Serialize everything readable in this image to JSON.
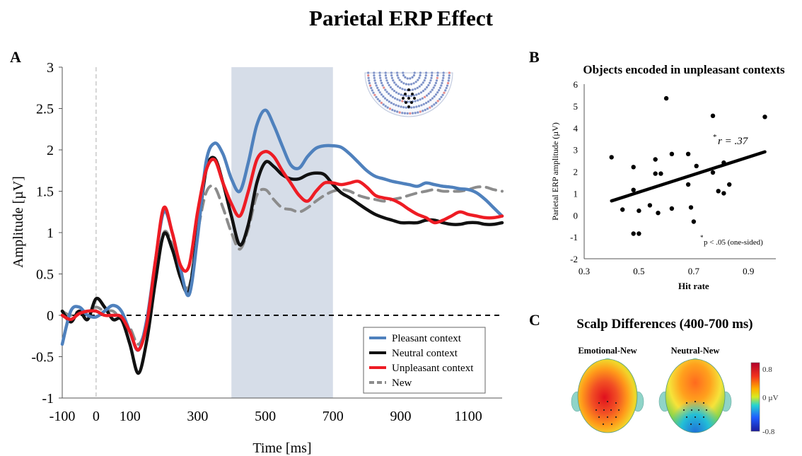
{
  "title": "Parietal ERP Effect",
  "colors": {
    "pleasant": "#4f81bd",
    "neutral": "#111111",
    "unpleasant": "#ee1c24",
    "new": "#8c8c8c",
    "window": "#d6dde8"
  },
  "panel_a": {
    "letter": "A",
    "xlabel": "Time [ms]",
    "ylabel": "Amplitude [µV]",
    "sensor_map_icon": "sensor-layout-icon"
  },
  "panel_b": {
    "letter": "B",
    "title": "Objects encoded in unpleasant contexts",
    "xlabel": "Hit rate",
    "ylabel": "Parietal ERP amplitude (µV)",
    "r_star": "*",
    "r_label": "r = .37",
    "p_star": "*",
    "p_label": "p < .05 (one-sided)"
  },
  "panel_c": {
    "letter": "C",
    "title": "Scalp Differences (400-700 ms)",
    "maps": [
      {
        "label": "Emotional-New"
      },
      {
        "label": "Neutral-New"
      }
    ],
    "colorbar": {
      "max": "0.8",
      "mid": "0 µV",
      "min": "-0.8"
    }
  },
  "chart_data": [
    {
      "type": "line",
      "panel": "A",
      "xlabel": "Time [ms]",
      "ylabel": "Amplitude [µV]",
      "xlim": [
        -100,
        1200
      ],
      "ylim": [
        -1,
        3
      ],
      "xticks": [
        -100,
        0,
        100,
        300,
        500,
        700,
        900,
        1100
      ],
      "yticks": [
        3,
        2.5,
        2,
        1.5,
        1,
        0.5,
        0,
        -0.5,
        -1
      ],
      "shaded_window": [
        400,
        700
      ],
      "zero_marker_x": 0,
      "legend": "bottom-right",
      "series": [
        {
          "name": "Pleasant context",
          "key": "pleasant",
          "dash": false,
          "x": [
            -100,
            -75,
            -50,
            -25,
            0,
            25,
            50,
            75,
            100,
            125,
            150,
            175,
            200,
            225,
            250,
            275,
            300,
            325,
            350,
            375,
            400,
            425,
            450,
            475,
            500,
            525,
            550,
            575,
            600,
            625,
            650,
            675,
            700,
            725,
            750,
            775,
            800,
            825,
            850,
            875,
            900,
            925,
            950,
            975,
            1000,
            1025,
            1050,
            1075,
            1100,
            1125,
            1150,
            1175,
            1200
          ],
          "y": [
            -0.35,
            0.05,
            0.1,
            0.0,
            -0.02,
            0.05,
            0.12,
            0.05,
            -0.2,
            -0.42,
            -0.05,
            0.65,
            1.25,
            1.0,
            0.55,
            0.25,
            0.95,
            1.85,
            2.08,
            1.95,
            1.65,
            1.5,
            1.85,
            2.3,
            2.48,
            2.3,
            2.05,
            1.82,
            1.78,
            1.92,
            2.02,
            2.05,
            2.05,
            2.03,
            1.95,
            1.85,
            1.75,
            1.68,
            1.65,
            1.62,
            1.6,
            1.58,
            1.56,
            1.6,
            1.58,
            1.56,
            1.55,
            1.53,
            1.52,
            1.48,
            1.4,
            1.3,
            1.2
          ]
        },
        {
          "name": "Neutral context",
          "key": "neutral",
          "dash": false,
          "x": [
            -100,
            -75,
            -50,
            -25,
            0,
            25,
            50,
            75,
            100,
            125,
            150,
            175,
            200,
            225,
            250,
            275,
            300,
            325,
            350,
            375,
            400,
            425,
            450,
            475,
            500,
            525,
            550,
            575,
            600,
            625,
            650,
            675,
            700,
            725,
            750,
            775,
            800,
            825,
            850,
            875,
            900,
            925,
            950,
            975,
            1000,
            1025,
            1050,
            1075,
            1100,
            1125,
            1150,
            1175,
            1200
          ],
          "y": [
            0.05,
            -0.08,
            0.05,
            -0.05,
            0.2,
            0.1,
            -0.05,
            -0.05,
            -0.35,
            -0.7,
            -0.3,
            0.4,
            0.98,
            0.8,
            0.45,
            0.3,
            1.0,
            1.75,
            1.9,
            1.6,
            1.2,
            0.85,
            1.1,
            1.6,
            1.85,
            1.8,
            1.7,
            1.65,
            1.65,
            1.7,
            1.72,
            1.7,
            1.58,
            1.48,
            1.42,
            1.35,
            1.28,
            1.22,
            1.18,
            1.15,
            1.12,
            1.12,
            1.12,
            1.15,
            1.15,
            1.12,
            1.1,
            1.1,
            1.12,
            1.12,
            1.1,
            1.1,
            1.12
          ]
        },
        {
          "name": "Unpleasant context",
          "key": "unpleasant",
          "dash": false,
          "x": [
            -100,
            -75,
            -50,
            -25,
            0,
            25,
            50,
            75,
            100,
            125,
            150,
            175,
            200,
            225,
            250,
            275,
            300,
            325,
            350,
            375,
            400,
            425,
            450,
            475,
            500,
            525,
            550,
            575,
            600,
            625,
            650,
            675,
            700,
            725,
            750,
            775,
            800,
            825,
            850,
            875,
            900,
            925,
            950,
            975,
            1000,
            1025,
            1050,
            1075,
            1100,
            1125,
            1150,
            1175,
            1200
          ],
          "y": [
            0.0,
            -0.05,
            0.02,
            0.05,
            0.05,
            0.0,
            0.0,
            -0.02,
            -0.2,
            -0.42,
            -0.1,
            0.65,
            1.3,
            1.0,
            0.6,
            0.6,
            1.25,
            1.75,
            1.88,
            1.6,
            1.35,
            1.2,
            1.5,
            1.88,
            1.98,
            1.92,
            1.75,
            1.6,
            1.45,
            1.38,
            1.5,
            1.6,
            1.6,
            1.58,
            1.6,
            1.62,
            1.55,
            1.45,
            1.42,
            1.4,
            1.35,
            1.28,
            1.22,
            1.18,
            1.12,
            1.15,
            1.2,
            1.25,
            1.22,
            1.2,
            1.18,
            1.18,
            1.2
          ]
        },
        {
          "name": "New",
          "key": "new",
          "dash": true,
          "x": [
            -100,
            -75,
            -50,
            -25,
            0,
            25,
            50,
            75,
            100,
            125,
            150,
            175,
            200,
            225,
            250,
            275,
            300,
            325,
            350,
            375,
            400,
            425,
            450,
            475,
            500,
            525,
            550,
            575,
            600,
            625,
            650,
            675,
            700,
            725,
            750,
            775,
            800,
            825,
            850,
            875,
            900,
            925,
            950,
            975,
            1000,
            1025,
            1050,
            1075,
            1100,
            1125,
            1150,
            1175,
            1200
          ],
          "y": [
            0.05,
            0.0,
            0.05,
            0.05,
            0.1,
            0.05,
            0.05,
            -0.05,
            -0.15,
            -0.35,
            -0.1,
            0.45,
            1.0,
            0.85,
            0.5,
            0.35,
            1.0,
            1.48,
            1.55,
            1.3,
            1.0,
            0.8,
            1.05,
            1.45,
            1.52,
            1.4,
            1.3,
            1.28,
            1.25,
            1.3,
            1.38,
            1.45,
            1.5,
            1.52,
            1.5,
            1.45,
            1.42,
            1.4,
            1.38,
            1.4,
            1.42,
            1.45,
            1.48,
            1.5,
            1.52,
            1.5,
            1.5,
            1.5,
            1.52,
            1.55,
            1.55,
            1.52,
            1.5
          ]
        }
      ]
    },
    {
      "type": "scatter",
      "panel": "B",
      "title": "Objects encoded in unpleasant contexts",
      "xlabel": "Hit rate",
      "ylabel": "Parietal ERP amplitude (µV)",
      "xlim": [
        0.3,
        1.0
      ],
      "ylim": [
        -2,
        6
      ],
      "xticks": [
        0.3,
        0.5,
        0.7,
        0.9
      ],
      "xtick_labels": [
        "0.3",
        "0.5",
        "0.7",
        "0.9"
      ],
      "yticks": [
        6,
        5,
        4,
        3,
        2,
        1,
        0,
        -1,
        -2
      ],
      "points": [
        {
          "x": 0.4,
          "y": 2.65
        },
        {
          "x": 0.44,
          "y": 0.25
        },
        {
          "x": 0.48,
          "y": 2.2
        },
        {
          "x": 0.48,
          "y": 1.15
        },
        {
          "x": 0.48,
          "y": -0.85
        },
        {
          "x": 0.5,
          "y": -0.85
        },
        {
          "x": 0.5,
          "y": 0.2
        },
        {
          "x": 0.54,
          "y": 0.45
        },
        {
          "x": 0.56,
          "y": 2.55
        },
        {
          "x": 0.56,
          "y": 1.9
        },
        {
          "x": 0.57,
          "y": 0.1
        },
        {
          "x": 0.58,
          "y": 1.9
        },
        {
          "x": 0.6,
          "y": 5.35
        },
        {
          "x": 0.62,
          "y": 2.8
        },
        {
          "x": 0.62,
          "y": 0.3
        },
        {
          "x": 0.68,
          "y": 2.8
        },
        {
          "x": 0.68,
          "y": 1.4
        },
        {
          "x": 0.69,
          "y": 0.35
        },
        {
          "x": 0.7,
          "y": -0.3
        },
        {
          "x": 0.71,
          "y": 2.25
        },
        {
          "x": 0.77,
          "y": 4.55
        },
        {
          "x": 0.77,
          "y": 1.95
        },
        {
          "x": 0.79,
          "y": 1.1
        },
        {
          "x": 0.81,
          "y": 2.4
        },
        {
          "x": 0.81,
          "y": 1.0
        },
        {
          "x": 0.83,
          "y": 1.4
        },
        {
          "x": 0.96,
          "y": 4.5
        }
      ],
      "fit_line": {
        "x": [
          0.4,
          0.96
        ],
        "y": [
          0.65,
          2.9
        ]
      }
    }
  ]
}
